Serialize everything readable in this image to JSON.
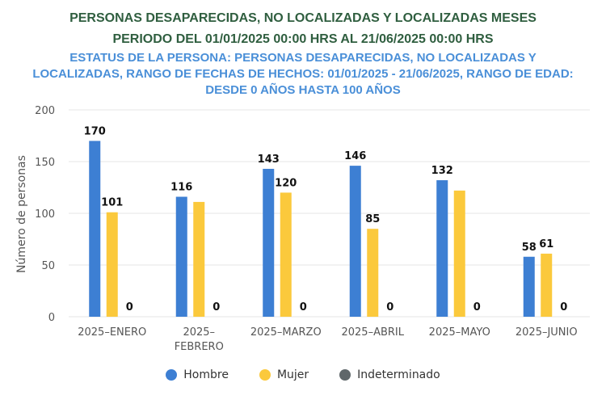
{
  "chart_data": {
    "type": "bar",
    "title": "PERSONAS DESAPARECIDAS, NO LOCALIZADAS Y LOCALIZADAS MESES",
    "title_line2": "PERIODO DEL 01/01/2025 00:00 HRS AL 21/06/2025 00:00 HRS",
    "subtitle": "ESTATUS DE LA PERSONA: PERSONAS DESAPARECIDAS, NO LOCALIZADAS Y LOCALIZADAS, RANGO DE FECHAS DE HECHOS: 01/01/2025 - 21/06/2025, RANGO DE EDAD: DESDE 0 AÑOS HASTA 100 AÑOS",
    "ylabel": "Número de personas",
    "xlabel": "",
    "ylim": [
      0,
      200
    ],
    "yticks": [
      0,
      50,
      100,
      150,
      200
    ],
    "categories": [
      [
        "2025–ENERO"
      ],
      [
        "2025–",
        "FEBRERO"
      ],
      [
        "2025–MARZO"
      ],
      [
        "2025–ABRIL"
      ],
      [
        "2025–MAYO"
      ],
      [
        "2025–JUNIO"
      ]
    ],
    "series": [
      {
        "name": "Hombre",
        "color": "#3d7fd3",
        "values": [
          170,
          116,
          143,
          146,
          132,
          58
        ],
        "labels": [
          "170",
          "116",
          "143",
          "146",
          "132",
          "58"
        ]
      },
      {
        "name": "Mujer",
        "color": "#fbc93c",
        "values": [
          101,
          111,
          120,
          85,
          122,
          61
        ],
        "labels": [
          "101",
          "",
          "120",
          "85",
          "",
          "61"
        ]
      },
      {
        "name": "Indeterminado",
        "color": "#5f676a",
        "values": [
          0,
          0,
          0,
          0,
          0,
          0
        ],
        "labels": [
          "0",
          "0",
          "0",
          "0",
          "0",
          "0"
        ]
      }
    ],
    "grid": true,
    "legend_position": "bottom"
  }
}
